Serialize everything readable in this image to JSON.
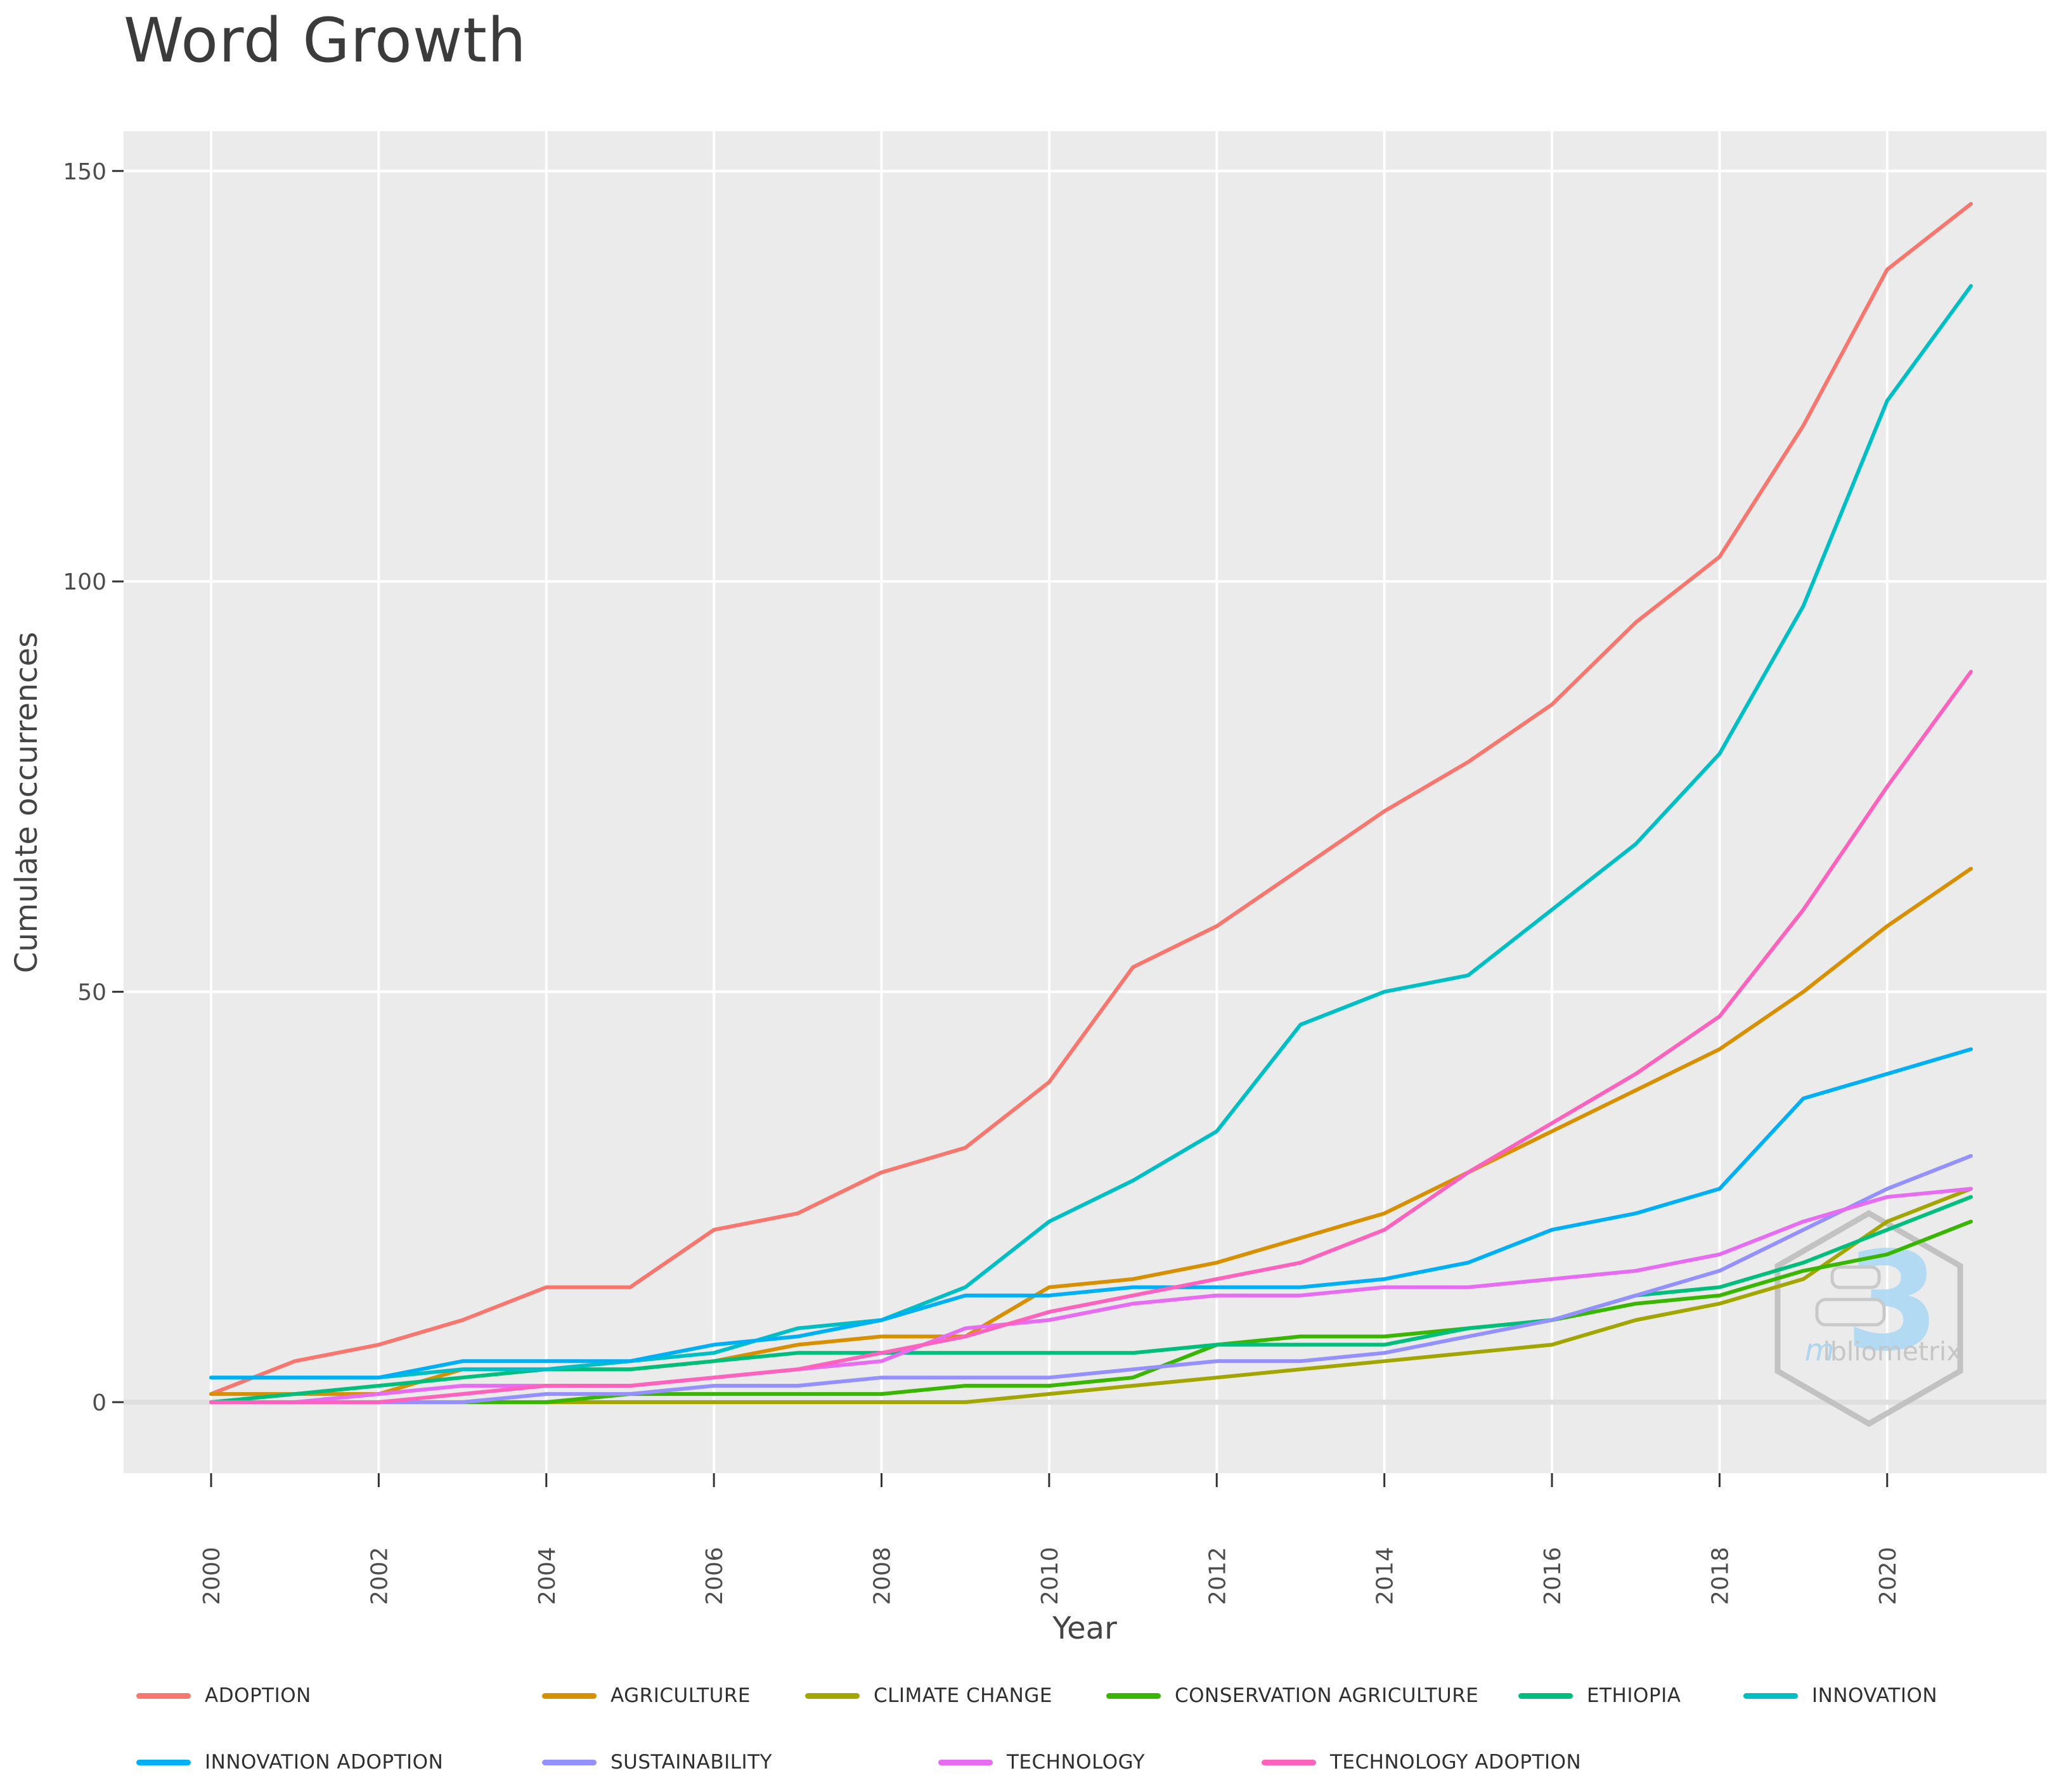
{
  "page": {
    "title": "Word Growth"
  },
  "axes": {
    "x_label": "Year",
    "y_label": "Cumulate occurrences"
  },
  "watermark": {
    "glyph": "3",
    "prefix": "m",
    "text": "ibliometrix"
  },
  "chart_data": {
    "type": "line",
    "title": "Word Growth",
    "xlabel": "Year",
    "ylabel": "Cumulate occurrences",
    "x": [
      2000,
      2001,
      2002,
      2003,
      2004,
      2005,
      2006,
      2007,
      2008,
      2009,
      2010,
      2011,
      2012,
      2013,
      2014,
      2015,
      2016,
      2017,
      2018,
      2019,
      2020,
      2021
    ],
    "x_ticks": [
      2000,
      2002,
      2004,
      2006,
      2008,
      2010,
      2012,
      2014,
      2016,
      2018,
      2020
    ],
    "y_ticks": [
      0,
      50,
      100,
      150
    ],
    "ylim": [
      0,
      150
    ],
    "grid": "major-only",
    "legend_position": "bottom",
    "panel_color": "#ebebeb",
    "zero_line_color": "#dfdfdf",
    "series": [
      {
        "name": "ADOPTION",
        "color": "#F8766D",
        "values": [
          1,
          5,
          7,
          10,
          14,
          14,
          21,
          23,
          28,
          31,
          39,
          53,
          58,
          65,
          72,
          78,
          85,
          95,
          103,
          119,
          138,
          146
        ]
      },
      {
        "name": "AGRICULTURE",
        "color": "#D89000",
        "values": [
          1,
          1,
          1,
          4,
          4,
          4,
          5,
          7,
          8,
          8,
          14,
          15,
          17,
          20,
          23,
          28,
          33,
          38,
          43,
          50,
          58,
          65
        ]
      },
      {
        "name": "CLIMATE CHANGE",
        "color": "#A3A500",
        "values": [
          0,
          0,
          0,
          0,
          0,
          0,
          0,
          0,
          0,
          0,
          1,
          2,
          3,
          4,
          5,
          6,
          7,
          10,
          12,
          15,
          22,
          26
        ]
      },
      {
        "name": "CONSERVATION AGRICULTURE",
        "color": "#39B600",
        "values": [
          0,
          0,
          0,
          0,
          0,
          1,
          1,
          1,
          1,
          2,
          2,
          3,
          7,
          8,
          8,
          9,
          10,
          12,
          13,
          16,
          18,
          22
        ]
      },
      {
        "name": "ETHIOPIA",
        "color": "#00BF7D",
        "values": [
          0,
          1,
          2,
          3,
          4,
          4,
          5,
          6,
          6,
          6,
          6,
          6,
          7,
          7,
          7,
          9,
          10,
          13,
          14,
          17,
          21,
          25
        ]
      },
      {
        "name": "INNOVATION",
        "color": "#00BFC4",
        "values": [
          3,
          3,
          3,
          4,
          4,
          5,
          6,
          9,
          10,
          14,
          22,
          27,
          33,
          46,
          50,
          52,
          60,
          68,
          79,
          97,
          122,
          136
        ]
      },
      {
        "name": "INNOVATION ADOPTION",
        "color": "#00B0F6",
        "values": [
          3,
          3,
          3,
          5,
          5,
          5,
          7,
          8,
          10,
          13,
          13,
          14,
          14,
          14,
          15,
          17,
          21,
          23,
          26,
          37,
          40,
          43
        ]
      },
      {
        "name": "SUSTAINABILITY",
        "color": "#9590FF",
        "values": [
          0,
          0,
          0,
          0,
          1,
          1,
          2,
          2,
          3,
          3,
          3,
          4,
          5,
          5,
          6,
          8,
          10,
          13,
          16,
          21,
          26,
          30
        ]
      },
      {
        "name": "TECHNOLOGY",
        "color": "#E76BF3",
        "values": [
          0,
          0,
          1,
          2,
          2,
          2,
          3,
          4,
          5,
          9,
          10,
          12,
          13,
          13,
          14,
          14,
          15,
          16,
          18,
          22,
          25,
          26
        ]
      },
      {
        "name": "TECHNOLOGY ADOPTION",
        "color": "#FF62BC",
        "values": [
          0,
          0,
          0,
          1,
          2,
          2,
          3,
          4,
          6,
          8,
          11,
          13,
          15,
          17,
          21,
          28,
          34,
          40,
          47,
          60,
          75,
          89
        ]
      }
    ]
  }
}
